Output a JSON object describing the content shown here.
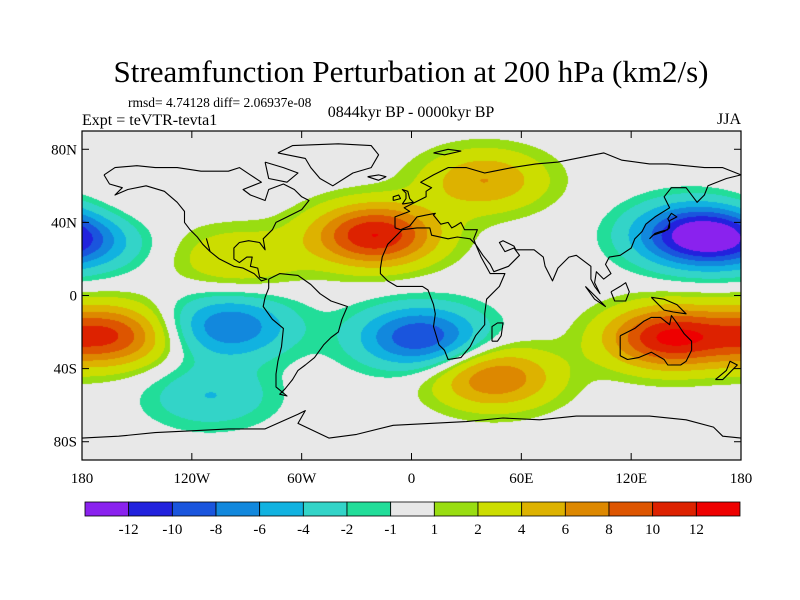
{
  "chart_data": {
    "type": "heatmap",
    "title": "Streamfunction Perturbation at 200 hPa (km2/s)",
    "stats_line": "rmsd= 4.74128 diff= 2.06937e-08",
    "experiment": "Expt = teVTR-tevta1",
    "period": "0844kyr BP - 0000kyr BP",
    "season": "JJA",
    "xlim": [
      -180,
      180
    ],
    "ylim": [
      -90,
      90
    ],
    "x_ticks": [
      {
        "value": -180,
        "label": "180"
      },
      {
        "value": -120,
        "label": "120W"
      },
      {
        "value": -60,
        "label": "60W"
      },
      {
        "value": 0,
        "label": "0"
      },
      {
        "value": 60,
        "label": "60E"
      },
      {
        "value": 120,
        "label": "120E"
      },
      {
        "value": 180,
        "label": "180"
      }
    ],
    "y_ticks": [
      {
        "value": 80,
        "label": "80N"
      },
      {
        "value": 40,
        "label": "40N"
      },
      {
        "value": 0,
        "label": "0"
      },
      {
        "value": -40,
        "label": "40S"
      },
      {
        "value": -80,
        "label": "80S"
      }
    ],
    "colorbar": {
      "levels": [
        "-12",
        "-10",
        "-8",
        "-6",
        "-4",
        "-2",
        "-1",
        "1",
        "2",
        "4",
        "6",
        "8",
        "10",
        "12"
      ],
      "colors": [
        "#8a22ee",
        "#2222dd",
        "#1a55dd",
        "#1288dd",
        "#11b2e0",
        "#33d4c8",
        "#22dd99",
        "#e8e8e8",
        "#99dd11",
        "#ccdd00",
        "#ddb200",
        "#dd8800",
        "#dd5500",
        "#dd2200",
        "#ee0000"
      ]
    },
    "anomaly_centers": [
      {
        "name": "north-pacific-west-high",
        "lon": -170,
        "lat": 40,
        "value": 4
      },
      {
        "name": "northeast-pacific-low",
        "lon": -178,
        "lat": 33,
        "value": -8
      },
      {
        "name": "north-atlantic-africa-high",
        "lon": -20,
        "lat": 33,
        "value": 12
      },
      {
        "name": "gulf-of-mexico-high",
        "lon": -95,
        "lat": 20,
        "value": 4
      },
      {
        "name": "west-pacific-low",
        "lon": 155,
        "lat": 33,
        "value": -12
      },
      {
        "name": "south-pacific-high",
        "lon": -165,
        "lat": -22,
        "value": 10
      },
      {
        "name": "south-atlantic-low",
        "lon": 5,
        "lat": -23,
        "value": -10
      },
      {
        "name": "southeast-pacific-low",
        "lon": -100,
        "lat": -17,
        "value": -8
      },
      {
        "name": "australia-high",
        "lon": 140,
        "lat": -23,
        "value": 12
      },
      {
        "name": "southern-indian-high",
        "lon": 45,
        "lat": -45,
        "value": 8
      },
      {
        "name": "subpolar-south-low",
        "lon": -110,
        "lat": -55,
        "value": -4
      },
      {
        "name": "north-atlantic-arctic-high",
        "lon": 40,
        "lat": 63,
        "value": 6
      }
    ]
  }
}
